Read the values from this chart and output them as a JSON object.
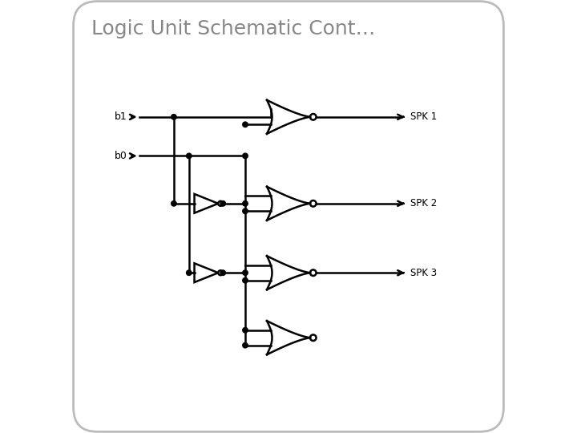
{
  "title": "Logic Unit Schematic Cont…",
  "title_color": "#888888",
  "bg_color": "#ffffff",
  "line_color": "#000000",
  "line_width": 1.8,
  "output_labels": [
    "SPK 1",
    "SPK 2",
    "SPK 3"
  ]
}
